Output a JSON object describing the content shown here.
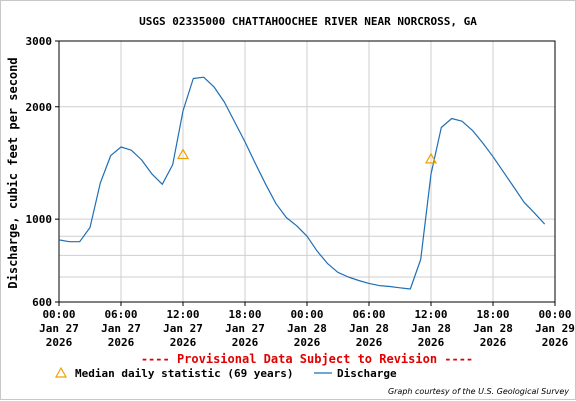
{
  "chart_data": {
    "type": "line",
    "title": "USGS 02335000 CHATTAHOOCHEE RIVER NEAR NORCROSS, GA",
    "ylabel": "Discharge, cubic feet per second",
    "xlabel": "",
    "y_scale": "log",
    "ylim": [
      600,
      3000
    ],
    "y_ticks": [
      600,
      1000,
      2000,
      3000
    ],
    "x_range": [
      "2026-01-27 00:00",
      "2026-01-29 00:00"
    ],
    "x_ticks": [
      {
        "time": "2026-01-27 00:00",
        "lines": [
          "00:00",
          "Jan 27",
          "2026"
        ]
      },
      {
        "time": "2026-01-27 06:00",
        "lines": [
          "06:00",
          "Jan 27",
          "2026"
        ]
      },
      {
        "time": "2026-01-27 12:00",
        "lines": [
          "12:00",
          "Jan 27",
          "2026"
        ]
      },
      {
        "time": "2026-01-27 18:00",
        "lines": [
          "18:00",
          "Jan 27",
          "2026"
        ]
      },
      {
        "time": "2026-01-28 00:00",
        "lines": [
          "00:00",
          "Jan 28",
          "2026"
        ]
      },
      {
        "time": "2026-01-28 06:00",
        "lines": [
          "06:00",
          "Jan 28",
          "2026"
        ]
      },
      {
        "time": "2026-01-28 12:00",
        "lines": [
          "12:00",
          "Jan 28",
          "2026"
        ]
      },
      {
        "time": "2026-01-28 18:00",
        "lines": [
          "18:00",
          "Jan 28",
          "2026"
        ]
      },
      {
        "time": "2026-01-29 00:00",
        "lines": [
          "00:00",
          "Jan 29",
          "2026"
        ]
      }
    ],
    "grid": true,
    "series": [
      {
        "name": "Discharge",
        "color": "#1f6fb5",
        "points": [
          [
            "2026-01-27 00:00",
            880
          ],
          [
            "2026-01-27 01:00",
            870
          ],
          [
            "2026-01-27 02:00",
            870
          ],
          [
            "2026-01-27 03:00",
            950
          ],
          [
            "2026-01-27 04:00",
            1250
          ],
          [
            "2026-01-27 05:00",
            1480
          ],
          [
            "2026-01-27 06:00",
            1560
          ],
          [
            "2026-01-27 07:00",
            1530
          ],
          [
            "2026-01-27 08:00",
            1440
          ],
          [
            "2026-01-27 09:00",
            1320
          ],
          [
            "2026-01-27 10:00",
            1240
          ],
          [
            "2026-01-27 11:00",
            1400
          ],
          [
            "2026-01-27 12:00",
            1950
          ],
          [
            "2026-01-27 13:00",
            2380
          ],
          [
            "2026-01-27 14:00",
            2400
          ],
          [
            "2026-01-27 15:00",
            2260
          ],
          [
            "2026-01-27 16:00",
            2060
          ],
          [
            "2026-01-27 17:00",
            1820
          ],
          [
            "2026-01-27 18:00",
            1610
          ],
          [
            "2026-01-27 19:00",
            1410
          ],
          [
            "2026-01-27 20:00",
            1240
          ],
          [
            "2026-01-27 21:00",
            1100
          ],
          [
            "2026-01-27 22:00",
            1010
          ],
          [
            "2026-01-27 23:00",
            960
          ],
          [
            "2026-01-28 00:00",
            900
          ],
          [
            "2026-01-28 01:00",
            820
          ],
          [
            "2026-01-28 02:00",
            760
          ],
          [
            "2026-01-28 03:00",
            720
          ],
          [
            "2026-01-28 04:00",
            700
          ],
          [
            "2026-01-28 05:00",
            685
          ],
          [
            "2026-01-28 06:00",
            673
          ],
          [
            "2026-01-28 07:00",
            664
          ],
          [
            "2026-01-28 08:00",
            660
          ],
          [
            "2026-01-28 09:00",
            655
          ],
          [
            "2026-01-28 10:00",
            650
          ],
          [
            "2026-01-28 11:00",
            780
          ],
          [
            "2026-01-28 12:00",
            1320
          ],
          [
            "2026-01-28 13:00",
            1760
          ],
          [
            "2026-01-28 14:00",
            1860
          ],
          [
            "2026-01-28 15:00",
            1830
          ],
          [
            "2026-01-28 16:00",
            1730
          ],
          [
            "2026-01-28 17:00",
            1600
          ],
          [
            "2026-01-28 18:00",
            1470
          ],
          [
            "2026-01-28 19:00",
            1340
          ],
          [
            "2026-01-28 20:00",
            1220
          ],
          [
            "2026-01-28 21:00",
            1110
          ],
          [
            "2026-01-28 22:00",
            1040
          ],
          [
            "2026-01-28 23:00",
            970
          ]
        ]
      },
      {
        "name": "Median daily statistic (69 years)",
        "color": "#f0a000",
        "marker": "triangle",
        "points": [
          [
            "2026-01-27 12:00",
            1490
          ],
          [
            "2026-01-28 12:00",
            1450
          ]
        ]
      }
    ],
    "annotation": "---- Provisional Data Subject to Revision ----",
    "credit": "Graph courtesy of the U.S. Geological Survey"
  }
}
